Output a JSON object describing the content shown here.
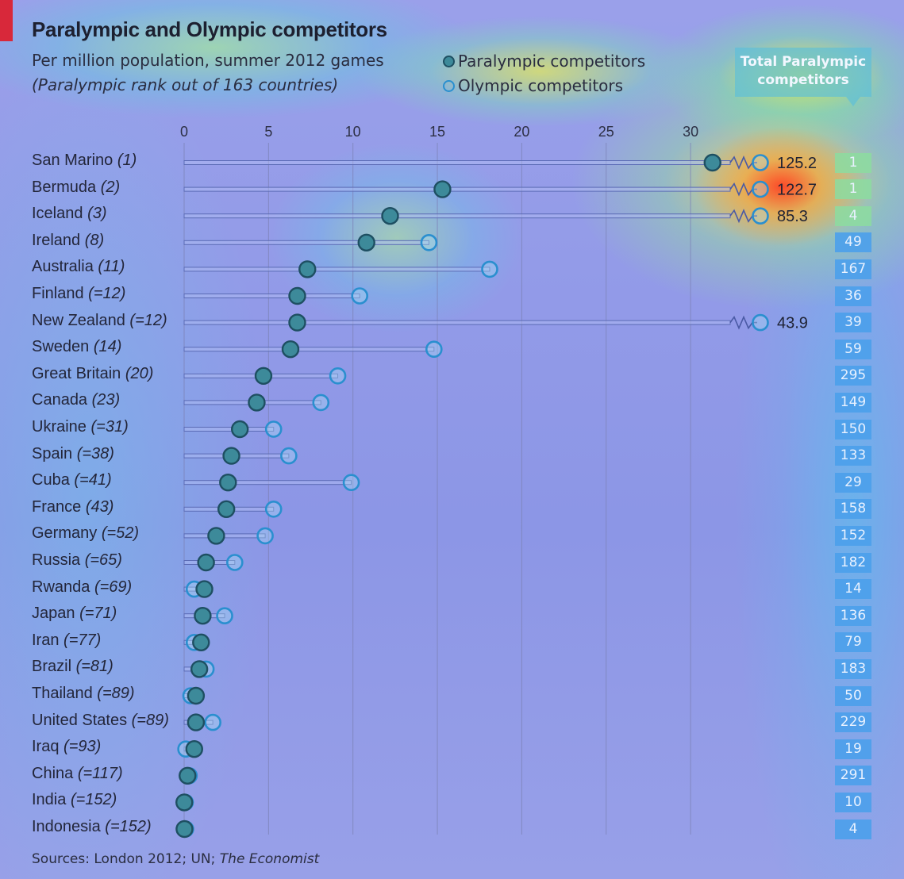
{
  "title": "Paralympic and Olympic competitors",
  "subtitle": "Per million population, summer 2012 games",
  "subtitle2": "(Paralympic rank out of 163 countries)",
  "legend": {
    "paralympic": "Paralympic competitors",
    "olympic": "Olympic competitors"
  },
  "total_header": "Total Paralympic competitors",
  "source_text": "Sources: London 2012; UN; ",
  "source_italic": "The Economist",
  "colors": {
    "paralympic_fill": "#3d8a9a",
    "paralympic_stroke": "#1e4f62",
    "olympic_stroke": "#2a8fcf",
    "total_cell": "#4ba0eb",
    "gridline": "#7d83b8"
  },
  "chart_data": {
    "type": "scatter",
    "title": "Paralympic and Olympic competitors",
    "subtitle": "Per million population, summer 2012 games",
    "xlim": [
      0,
      30
    ],
    "xticks": [
      0,
      5,
      10,
      15,
      20,
      25,
      30
    ],
    "grid": true,
    "legend_position": "top-right",
    "series_names": [
      "Paralympic competitors",
      "Olympic competitors"
    ],
    "rows": [
      {
        "country": "San Marino",
        "rank": "(1)",
        "paralympic": 31.3,
        "olympic": 125.2,
        "olympic_label": "125.2",
        "olympic_offscale": true,
        "total": "1"
      },
      {
        "country": "Bermuda",
        "rank": "(2)",
        "paralympic": 15.3,
        "olympic": 122.7,
        "olympic_label": "122.7",
        "olympic_offscale": true,
        "total": "1"
      },
      {
        "country": "Iceland",
        "rank": "(3)",
        "paralympic": 12.2,
        "olympic": 85.3,
        "olympic_label": "85.3",
        "olympic_offscale": true,
        "total": "4"
      },
      {
        "country": "Ireland",
        "rank": "(8)",
        "paralympic": 10.8,
        "olympic": 14.5,
        "olympic_label": "",
        "olympic_offscale": false,
        "total": "49"
      },
      {
        "country": "Australia",
        "rank": "(11)",
        "paralympic": 7.3,
        "olympic": 18.1,
        "olympic_label": "",
        "olympic_offscale": false,
        "total": "167"
      },
      {
        "country": "Finland",
        "rank": "(=12)",
        "paralympic": 6.7,
        "olympic": 10.4,
        "olympic_label": "",
        "olympic_offscale": false,
        "total": "36"
      },
      {
        "country": "New Zealand",
        "rank": "(=12)",
        "paralympic": 6.7,
        "olympic": 43.9,
        "olympic_label": "43.9",
        "olympic_offscale": true,
        "total": "39"
      },
      {
        "country": "Sweden",
        "rank": "(14)",
        "paralympic": 6.3,
        "olympic": 14.8,
        "olympic_label": "",
        "olympic_offscale": false,
        "total": "59"
      },
      {
        "country": "Great Britain",
        "rank": "(20)",
        "paralympic": 4.7,
        "olympic": 9.1,
        "olympic_label": "",
        "olympic_offscale": false,
        "total": "295"
      },
      {
        "country": "Canada",
        "rank": "(23)",
        "paralympic": 4.3,
        "olympic": 8.1,
        "olympic_label": "",
        "olympic_offscale": false,
        "total": "149"
      },
      {
        "country": "Ukraine",
        "rank": "(=31)",
        "paralympic": 3.3,
        "olympic": 5.3,
        "olympic_label": "",
        "olympic_offscale": false,
        "total": "150"
      },
      {
        "country": "Spain",
        "rank": "(=38)",
        "paralympic": 2.8,
        "olympic": 6.2,
        "olympic_label": "",
        "olympic_offscale": false,
        "total": "133"
      },
      {
        "country": "Cuba",
        "rank": "(=41)",
        "paralympic": 2.6,
        "olympic": 9.9,
        "olympic_label": "",
        "olympic_offscale": false,
        "total": "29"
      },
      {
        "country": "France",
        "rank": "(43)",
        "paralympic": 2.5,
        "olympic": 5.3,
        "olympic_label": "",
        "olympic_offscale": false,
        "total": "158"
      },
      {
        "country": "Germany",
        "rank": "(=52)",
        "paralympic": 1.9,
        "olympic": 4.8,
        "olympic_label": "",
        "olympic_offscale": false,
        "total": "152"
      },
      {
        "country": "Russia",
        "rank": "(=65)",
        "paralympic": 1.3,
        "olympic": 3.0,
        "olympic_label": "",
        "olympic_offscale": false,
        "total": "182"
      },
      {
        "country": "Rwanda",
        "rank": "(=69)",
        "paralympic": 1.2,
        "olympic": 0.6,
        "olympic_label": "",
        "olympic_offscale": false,
        "total": "14"
      },
      {
        "country": "Japan",
        "rank": "(=71)",
        "paralympic": 1.1,
        "olympic": 2.4,
        "olympic_label": "",
        "olympic_offscale": false,
        "total": "136"
      },
      {
        "country": "Iran",
        "rank": "(=77)",
        "paralympic": 1.0,
        "olympic": 0.6,
        "olympic_label": "",
        "olympic_offscale": false,
        "total": "79"
      },
      {
        "country": "Brazil",
        "rank": "(=81)",
        "paralympic": 0.9,
        "olympic": 1.3,
        "olympic_label": "",
        "olympic_offscale": false,
        "total": "183"
      },
      {
        "country": "Thailand",
        "rank": "(=89)",
        "paralympic": 0.7,
        "olympic": 0.4,
        "olympic_label": "",
        "olympic_offscale": false,
        "total": "50"
      },
      {
        "country": "United States",
        "rank": "(=89)",
        "paralympic": 0.7,
        "olympic": 1.7,
        "olympic_label": "",
        "olympic_offscale": false,
        "total": "229"
      },
      {
        "country": "Iraq",
        "rank": "(=93)",
        "paralympic": 0.6,
        "olympic": 0.1,
        "olympic_label": "",
        "olympic_offscale": false,
        "total": "19"
      },
      {
        "country": "China",
        "rank": "(=117)",
        "paralympic": 0.2,
        "olympic": 0.3,
        "olympic_label": "",
        "olympic_offscale": false,
        "total": "291"
      },
      {
        "country": "India",
        "rank": "(=152)",
        "paralympic": 0.01,
        "olympic": 0.07,
        "olympic_label": "",
        "olympic_offscale": false,
        "total": "10"
      },
      {
        "country": "Indonesia",
        "rank": "(=152)",
        "paralympic": 0.02,
        "olympic": 0.09,
        "olympic_label": "",
        "olympic_offscale": false,
        "total": "4"
      }
    ]
  }
}
